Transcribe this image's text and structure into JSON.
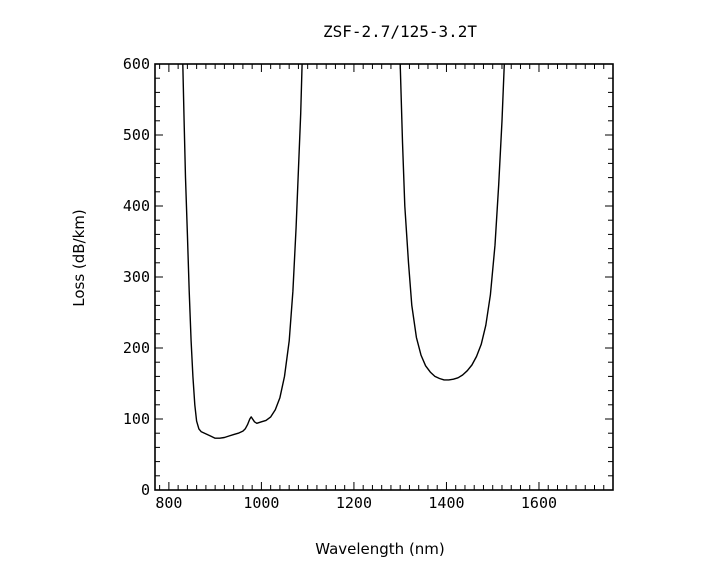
{
  "chart_data": {
    "type": "line",
    "title": "ZSF-2.7/125-3.2T",
    "xlabel": "Wavelength (nm)",
    "ylabel": "Loss (dB/km)",
    "xlim": [
      770,
      1760
    ],
    "ylim": [
      0,
      600
    ],
    "x_ticks": [
      800,
      1000,
      1200,
      1400,
      1600
    ],
    "y_ticks": [
      0,
      100,
      200,
      300,
      400,
      500,
      600
    ],
    "x_minor_step": 20,
    "y_minor_step": 20,
    "grid": false,
    "series": [
      {
        "values": [
          [
            830,
            600
          ],
          [
            833,
            520
          ],
          [
            836,
            440
          ],
          [
            840,
            360
          ],
          [
            844,
            280
          ],
          [
            848,
            210
          ],
          [
            852,
            160
          ],
          [
            856,
            120
          ],
          [
            860,
            97
          ],
          [
            865,
            86
          ],
          [
            870,
            82
          ],
          [
            880,
            79
          ],
          [
            890,
            76
          ],
          [
            900,
            73
          ],
          [
            910,
            73
          ],
          [
            920,
            74
          ],
          [
            930,
            76
          ],
          [
            940,
            78
          ],
          [
            950,
            80
          ],
          [
            960,
            83
          ],
          [
            965,
            86
          ],
          [
            970,
            92
          ],
          [
            975,
            100
          ],
          [
            978,
            103
          ],
          [
            981,
            100
          ],
          [
            985,
            96
          ],
          [
            990,
            94
          ],
          [
            1000,
            96
          ],
          [
            1010,
            98
          ],
          [
            1020,
            103
          ],
          [
            1030,
            113
          ],
          [
            1040,
            130
          ],
          [
            1050,
            160
          ],
          [
            1060,
            210
          ],
          [
            1068,
            280
          ],
          [
            1075,
            370
          ],
          [
            1080,
            450
          ],
          [
            1085,
            530
          ],
          [
            1088,
            600
          ]
        ]
      },
      {
        "values": [
          [
            1300,
            600
          ],
          [
            1305,
            490
          ],
          [
            1310,
            400
          ],
          [
            1318,
            320
          ],
          [
            1325,
            260
          ],
          [
            1335,
            215
          ],
          [
            1345,
            190
          ],
          [
            1355,
            175
          ],
          [
            1365,
            166
          ],
          [
            1375,
            160
          ],
          [
            1385,
            157
          ],
          [
            1395,
            155
          ],
          [
            1405,
            155
          ],
          [
            1415,
            156
          ],
          [
            1425,
            158
          ],
          [
            1435,
            162
          ],
          [
            1445,
            168
          ],
          [
            1455,
            176
          ],
          [
            1465,
            188
          ],
          [
            1475,
            205
          ],
          [
            1485,
            232
          ],
          [
            1495,
            275
          ],
          [
            1505,
            345
          ],
          [
            1513,
            430
          ],
          [
            1520,
            520
          ],
          [
            1525,
            600
          ]
        ]
      }
    ]
  }
}
